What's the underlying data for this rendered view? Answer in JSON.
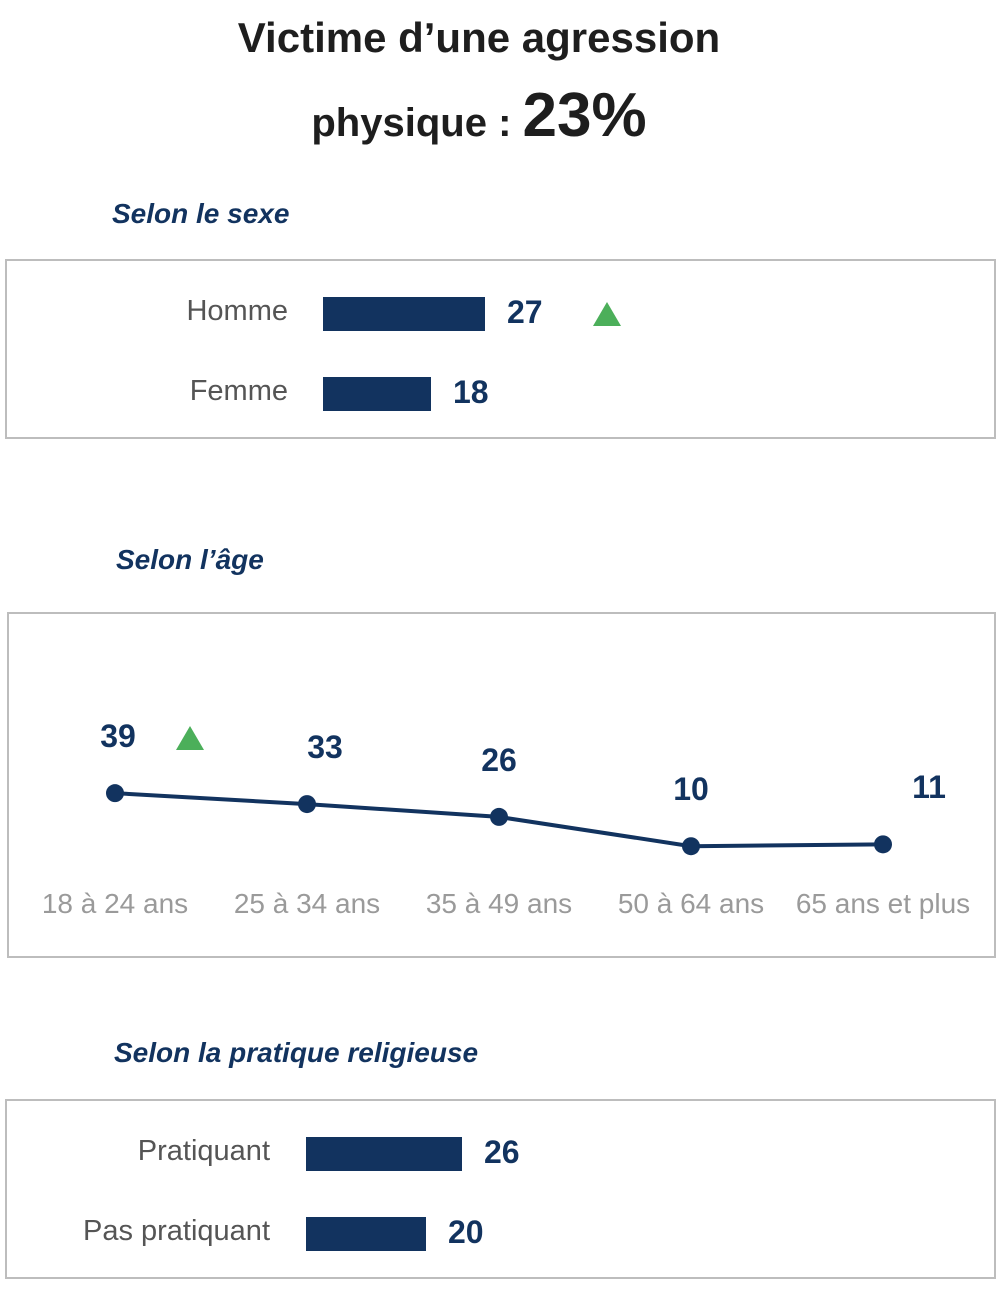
{
  "title": {
    "line1": "Victime d’une agression",
    "line2": "physique :",
    "value": "23%"
  },
  "colors": {
    "bar": "#12335f",
    "increase": "#4caf5a",
    "axis_text": "#9a9a9a"
  },
  "chart_data": [
    {
      "type": "bar",
      "orientation": "horizontal",
      "title": "Selon le sexe",
      "categories": [
        "Homme",
        "Femme"
      ],
      "values": [
        27,
        18
      ],
      "markers": [
        {
          "category": "Homme",
          "icon": "up-triangle-icon"
        }
      ]
    },
    {
      "type": "line",
      "title": "Selon l’âge",
      "categories": [
        "18 à 24 ans",
        "25 à 34 ans",
        "35 à 49 ans",
        "50 à 64 ans",
        "65 ans et plus"
      ],
      "values": [
        39,
        33,
        26,
        10,
        11
      ],
      "markers": [
        {
          "category": "18 à 24 ans",
          "icon": "up-triangle-icon"
        }
      ]
    },
    {
      "type": "bar",
      "orientation": "horizontal",
      "title": "Selon la pratique religieuse",
      "categories": [
        "Pratiquant",
        "Pas pratiquant"
      ],
      "values": [
        26,
        20
      ]
    }
  ]
}
